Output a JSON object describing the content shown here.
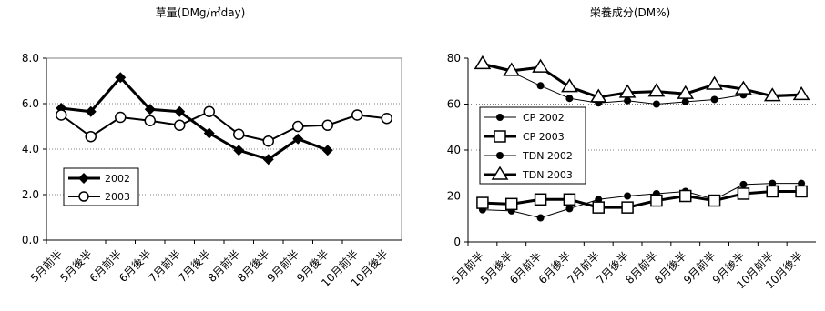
{
  "chart_data": [
    {
      "type": "line",
      "title": "草量(DMg/㎡day)",
      "categories": [
        "5月前半",
        "5月後半",
        "6月前半",
        "6月後半",
        "7月前半",
        "7月後半",
        "8月前半",
        "8月後半",
        "9月前半",
        "9月後半",
        "10月前半",
        "10月後半"
      ],
      "ylim": [
        0,
        8
      ],
      "yticks": [
        "0.0",
        "2.0",
        "4.0",
        "6.0",
        "8.0"
      ],
      "grid": true,
      "legend": "lower-left",
      "series": [
        {
          "name": "2002",
          "marker": "diamond-filled",
          "values": [
            5.8,
            5.65,
            7.15,
            5.75,
            5.65,
            4.7,
            3.95,
            3.55,
            4.45,
            3.95,
            null,
            null
          ]
        },
        {
          "name": "2003",
          "marker": "circle-open",
          "values": [
            5.5,
            4.55,
            5.4,
            5.25,
            5.05,
            5.65,
            4.65,
            4.35,
            5.0,
            5.05,
            5.5,
            5.35
          ]
        }
      ]
    },
    {
      "type": "line",
      "title": "栄養成分(DM%)",
      "categories": [
        "5月前半",
        "5月後半",
        "6月前半",
        "6月後半",
        "7月前半",
        "7月後半",
        "8月前半",
        "8月後半",
        "9月前半",
        "9月後半",
        "10月前半",
        "10月後半"
      ],
      "ylim": [
        0,
        80
      ],
      "yticks": [
        "0",
        "20",
        "40",
        "60",
        "80"
      ],
      "grid": true,
      "legend": "left",
      "series": [
        {
          "name": "CP  2002",
          "marker": "circle-filled",
          "values": [
            14,
            13.5,
            10.5,
            14.5,
            18.5,
            20,
            21,
            22,
            18.5,
            25,
            25.5,
            25.5
          ]
        },
        {
          "name": "CP  2003",
          "marker": "square-open",
          "values": [
            17,
            16.5,
            18.5,
            18.5,
            15,
            15,
            18,
            20,
            18,
            21,
            22,
            22
          ]
        },
        {
          "name": "TDN  2002",
          "marker": "circle-filled",
          "values": [
            77,
            74,
            68,
            62.5,
            60.5,
            61.5,
            60,
            61,
            62,
            64,
            64,
            64.5
          ]
        },
        {
          "name": "TDN  2003",
          "marker": "triangle-open",
          "values": [
            77.5,
            74.5,
            76,
            67.5,
            63,
            65,
            65.5,
            64.5,
            68.5,
            66.5,
            63.5,
            64
          ]
        }
      ]
    }
  ]
}
